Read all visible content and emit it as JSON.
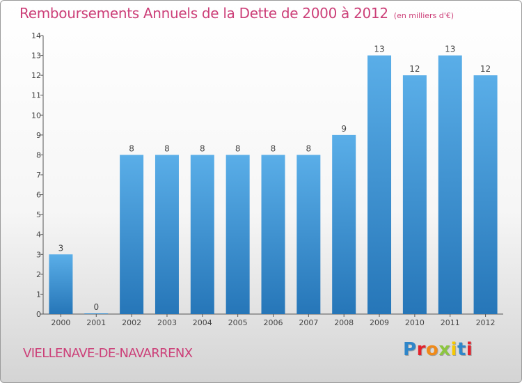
{
  "header": {
    "title": "Remboursements Annuels de la Dette de 2000 à 2012",
    "subtitle": "(en milliers d'€)"
  },
  "footer": {
    "commune": "VIELLENAVE-DE-NAVARRENX",
    "logo": "Proxiti"
  },
  "colors": {
    "title": "#cc3f78",
    "bar_top": "#5aaee8",
    "bar_bottom": "#2676b8",
    "axis": "#555555",
    "tick_label": "#444444"
  },
  "chart_data": {
    "type": "bar",
    "title": "Remboursements Annuels de la Dette de 2000 à 2012",
    "subtitle": "(en milliers d'€)",
    "xlabel": "",
    "ylabel": "",
    "categories": [
      "2000",
      "2001",
      "2002",
      "2003",
      "2004",
      "2005",
      "2006",
      "2007",
      "2008",
      "2009",
      "2010",
      "2011",
      "2012"
    ],
    "values": [
      3,
      0,
      8,
      8,
      8,
      8,
      8,
      8,
      9,
      13,
      12,
      13,
      12
    ],
    "data_labels": [
      "3",
      "0",
      "8",
      "8",
      "8",
      "8",
      "8",
      "8",
      "9",
      "13",
      "12",
      "13",
      "12"
    ],
    "ylim": [
      0,
      14
    ],
    "yticks": [
      0,
      1,
      2,
      3,
      4,
      5,
      6,
      7,
      8,
      9,
      10,
      11,
      12,
      13,
      14
    ],
    "grid": false,
    "legend": "none"
  }
}
